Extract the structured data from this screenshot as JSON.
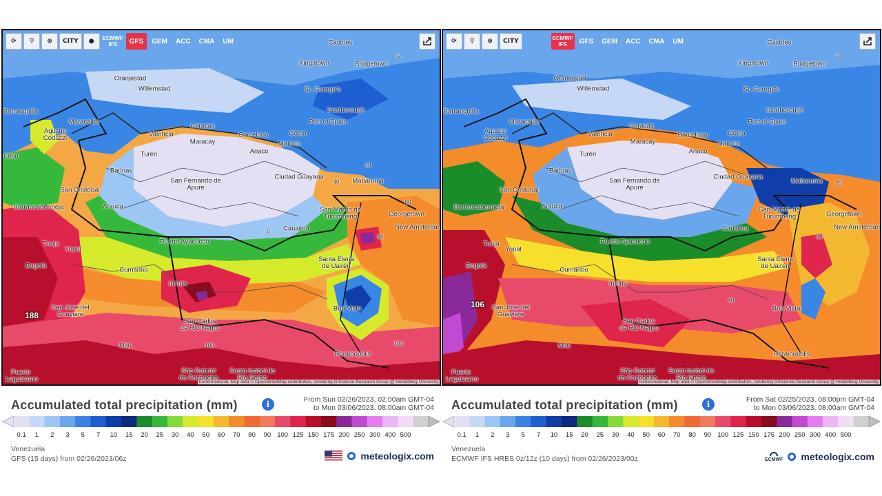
{
  "panels": [
    {
      "id": "left",
      "toolbar": {
        "buttons": [
          {
            "icon": "refresh-icon"
          },
          {
            "icon": "location-pin-icon"
          },
          {
            "icon": "zoom-icon"
          },
          {
            "label": "CITY"
          },
          {
            "icon": "dark-circle-icon"
          }
        ],
        "models": [
          {
            "label": "ECMWF IFS",
            "active": false
          },
          {
            "label": "GFS",
            "active": true
          },
          {
            "label": "GEM",
            "active": false
          },
          {
            "label": "ACC",
            "active": false
          },
          {
            "label": "CMA",
            "active": false
          },
          {
            "label": "UM",
            "active": false
          }
        ]
      },
      "max_value": "188",
      "attribution": "Kartenmaterial: Map data © OpenStreetMap contributors, rendering GIScience Research Group @ Heidelberg University",
      "title": "Accumulated total precipitation (mm)",
      "valid_from": "From Sun 02/26/2023, 02:00am GMT-04",
      "valid_to": "to Mon 03/06/2023, 08:00am GMT-04",
      "region": "Venezuela",
      "model_run": "GFS (15 days) from 02/26/2023/06z",
      "brand": "meteologix.com",
      "provider_logo": "us-flag-icon"
    },
    {
      "id": "right",
      "toolbar": {
        "buttons": [
          {
            "icon": "refresh-icon"
          },
          {
            "icon": "location-pin-icon"
          },
          {
            "icon": "zoom-icon"
          },
          {
            "label": "CITY"
          }
        ],
        "models": [
          {
            "label": "ECMWF IFS",
            "active": true
          },
          {
            "label": "GFS",
            "active": false
          },
          {
            "label": "GEM",
            "active": false
          },
          {
            "label": "ACC",
            "active": false
          },
          {
            "label": "CMA",
            "active": false
          },
          {
            "label": "UM",
            "active": false
          }
        ]
      },
      "max_value": "106",
      "attribution": "Kartenmaterial: Map data © OpenStreetMap contributors, rendering GIScience Research Group @ Heidelberg University",
      "title": "Accumulated total precipitation (mm)",
      "valid_from": "From Sat 02/25/2023, 08:00pm GMT-04",
      "valid_to": "to Mon 03/06/2023, 08:00am GMT-04",
      "region": "Venezuela",
      "model_run": "ECMWF IFS HRES 0z/12z (10 days) from 02/26/2023/00z",
      "brand": "meteologix.com",
      "provider_logo": "ecmwf-logo-icon",
      "provider_text": "ECMWF"
    }
  ],
  "places": [
    {
      "name": "Castries"
    },
    {
      "name": "Kingstown"
    },
    {
      "name": "Bridgetown"
    },
    {
      "name": "St. George's"
    },
    {
      "name": "Oranjestad"
    },
    {
      "name": "Willemstad"
    },
    {
      "name": "Scarborough"
    },
    {
      "name": "Port of Spain"
    },
    {
      "name": "Barranquilla"
    },
    {
      "name": "Maracaibo"
    },
    {
      "name": "Agustín Codazzi"
    },
    {
      "name": "Valencia"
    },
    {
      "name": "Caracas"
    },
    {
      "name": "Barcelona"
    },
    {
      "name": "Güiria"
    },
    {
      "name": "Maracay"
    },
    {
      "name": "Maturín"
    },
    {
      "name": "Turén"
    },
    {
      "name": "Anaco"
    },
    {
      "name": "Barinas"
    },
    {
      "name": "San Fernando de Apure"
    },
    {
      "name": "Ciudad Guayana"
    },
    {
      "name": "Mabaruma"
    },
    {
      "name": "San Cristóbal"
    },
    {
      "name": "Barrancabermeja"
    },
    {
      "name": "Arauca"
    },
    {
      "name": "San Martín de Turumbang"
    },
    {
      "name": "Georgetown"
    },
    {
      "name": "New Amsterdam"
    },
    {
      "name": "Canaima"
    },
    {
      "name": "Tunja"
    },
    {
      "name": "Yopal"
    },
    {
      "name": "Puerto Ayacucho"
    },
    {
      "name": "Bogotá"
    },
    {
      "name": "Cumaribo"
    },
    {
      "name": "Santa Elena de Uairén"
    },
    {
      "name": "Inírida"
    },
    {
      "name": "Boa Vista"
    },
    {
      "name": "San José del Guaviare"
    },
    {
      "name": "San Carlos de Río Negro"
    },
    {
      "name": "Mitú"
    },
    {
      "name": "Rorainópolis"
    },
    {
      "name": "São Gabriel da Cachoeira"
    },
    {
      "name": "Santa Isabel do Rio Negro"
    },
    {
      "name": "Puerto Leguízamo"
    },
    {
      "name": "Elejo"
    }
  ],
  "contours": [
    "5",
    "20",
    "40",
    "60",
    "80",
    "100",
    "100",
    "5",
    "60",
    "40"
  ],
  "legend": {
    "ticks": [
      "0.1",
      "1",
      "2",
      "3",
      "5",
      "7",
      "10",
      "15",
      "20",
      "25",
      "30",
      "40",
      "50",
      "60",
      "70",
      "80",
      "90",
      "100",
      "125",
      "150",
      "175",
      "200",
      "250",
      "300",
      "400",
      "500"
    ],
    "colors": [
      "#e4e0f4",
      "#c6d8f6",
      "#9cc6f4",
      "#6aa6ec",
      "#3c82e2",
      "#1e5ed0",
      "#0f3ea8",
      "#0c2a7e",
      "#1a8c2a",
      "#36b83c",
      "#86da3c",
      "#d6ea2c",
      "#f6e02c",
      "#f4b830",
      "#f48c2c",
      "#ef6a34",
      "#f07a5c",
      "#e84a6a",
      "#e0254c",
      "#b8102c",
      "#8c0a1e",
      "#8a2a9a",
      "#c04ad2",
      "#e47ef0",
      "#eab6f4",
      "#f4dcf8",
      "#d0d0d0"
    ]
  }
}
